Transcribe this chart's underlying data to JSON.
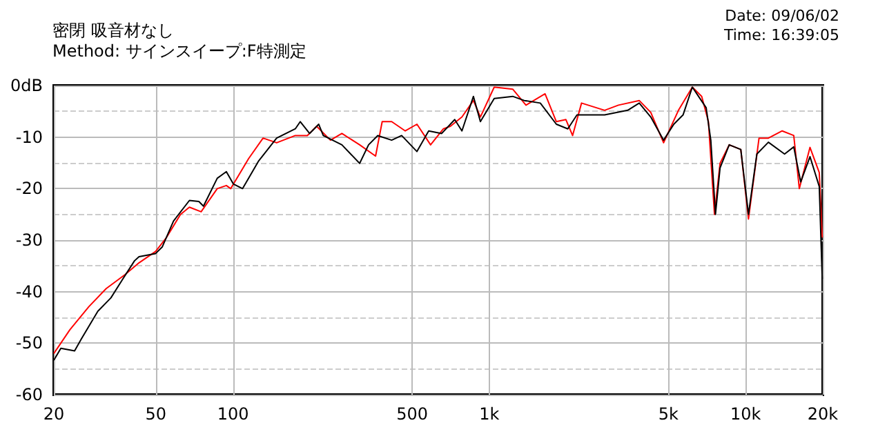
{
  "chart_data": {
    "type": "line",
    "subtitle": "密閉 吸音材なし",
    "annotations": [
      "Method: サインスイープ:F特測定",
      "Date: 09/06/02",
      "Time: 16:39:05"
    ],
    "log": "x",
    "grid": true,
    "marker": "none",
    "line_style": "solid",
    "xlim": [
      20,
      20000
    ],
    "xticks": [
      20,
      50,
      100,
      500,
      {
        "value": 1000,
        "label": "1k"
      },
      {
        "value": 5000,
        "label": "5k"
      },
      {
        "value": 10000,
        "label": "10k"
      },
      {
        "value": 20000,
        "label": "20k"
      }
    ],
    "ylim": [
      -60,
      0
    ],
    "yticks": [
      -60,
      -50,
      -40,
      -30,
      -20,
      -10,
      {
        "value": 0,
        "label": "0dB"
      }
    ],
    "series": [
      {
        "color": "#ff0000",
        "x": [
          20,
          23.1,
          27.4,
          32,
          37.9,
          43,
          49.9,
          55,
          62.4,
          67.6,
          75.1,
          86.8,
          94.2,
          98,
          115,
          131,
          148,
          175,
          195,
          212,
          240,
          266,
          312,
          360,
          382,
          416,
          470,
          522,
          590,
          662,
          705,
          782,
          867,
          923,
          1045,
          1234,
          1390,
          1650,
          1826,
          1990,
          2113,
          2290,
          2818,
          3190,
          3845,
          4265,
          4786,
          5470,
          6195,
          6740,
          7160,
          7560,
          7947,
          8630,
          9575,
          10260,
          11280,
          12270,
          13890,
          15410,
          16200,
          17830,
          19380,
          19900
        ],
        "values": [
          -52,
          -47.4,
          -42.9,
          -39.4,
          -36.7,
          -34.4,
          -32.2,
          -29.5,
          -25,
          -23.6,
          -24.5,
          -20,
          -19.4,
          -20,
          -14.2,
          -10.2,
          -11.1,
          -9.7,
          -9.7,
          -7.9,
          -10.6,
          -9.3,
          -11.5,
          -13.7,
          -7,
          -7,
          -8.8,
          -7.5,
          -11.5,
          -8.4,
          -7.9,
          -6.1,
          -2.9,
          -6.1,
          -0.3,
          -0.7,
          -3.8,
          -1.6,
          -7,
          -6.6,
          -9.7,
          -3.4,
          -4.8,
          -3.8,
          -2.9,
          -5.2,
          -11.1,
          -4.8,
          -0.3,
          -2.1,
          -7,
          -25,
          -15.1,
          -11.5,
          -12.4,
          -25.9,
          -10.2,
          -10.2,
          -8.8,
          -9.7,
          -20,
          -12,
          -16.9,
          -29.5
        ]
      },
      {
        "color": "#000000",
        "x": [
          20,
          21.3,
          24.1,
          25.6,
          29.7,
          33.4,
          37.1,
          41.3,
          43,
          49.9,
          53,
          58.6,
          67.6,
          73.6,
          76.7,
          86.8,
          94.2,
          100.3,
          109,
          126,
          148,
          175,
          183,
          199,
          216,
          225,
          266,
          312,
          338,
          367,
          416,
          455,
          522,
          580,
          652,
          733,
          782,
          867,
          923,
          1045,
          1234,
          1368,
          1581,
          1826,
          2024,
          2198,
          2818,
          3467,
          3845,
          4265,
          4786,
          5247,
          5700,
          6195,
          7015,
          7314,
          7626,
          7947,
          8630,
          9575,
          10260,
          11060,
          12270,
          14190,
          15410,
          16400,
          17830,
          19380,
          19900
        ],
        "values": [
          -53.3,
          -51,
          -51.5,
          -49.2,
          -43.8,
          -41.2,
          -37.6,
          -34,
          -33.2,
          -32.6,
          -31.3,
          -26.3,
          -22.3,
          -22.5,
          -23.4,
          -18,
          -16.7,
          -19.1,
          -20,
          -14.6,
          -10.2,
          -8.4,
          -7,
          -9.3,
          -7.5,
          -9.7,
          -11.5,
          -15.1,
          -11.5,
          -9.7,
          -10.6,
          -9.7,
          -12.8,
          -8.8,
          -9.3,
          -6.6,
          -8.8,
          -2.1,
          -7,
          -2.5,
          -2.1,
          -2.9,
          -3.4,
          -7.5,
          -8.4,
          -5.7,
          -5.7,
          -4.8,
          -3.4,
          -6.1,
          -10.6,
          -7.5,
          -5.7,
          -0.3,
          -4.3,
          -10.6,
          -25,
          -16,
          -11.5,
          -12.4,
          -25,
          -13.3,
          -11,
          -13.3,
          -11.9,
          -18.7,
          -13.8,
          -19.6,
          -37.5
        ]
      }
    ]
  }
}
